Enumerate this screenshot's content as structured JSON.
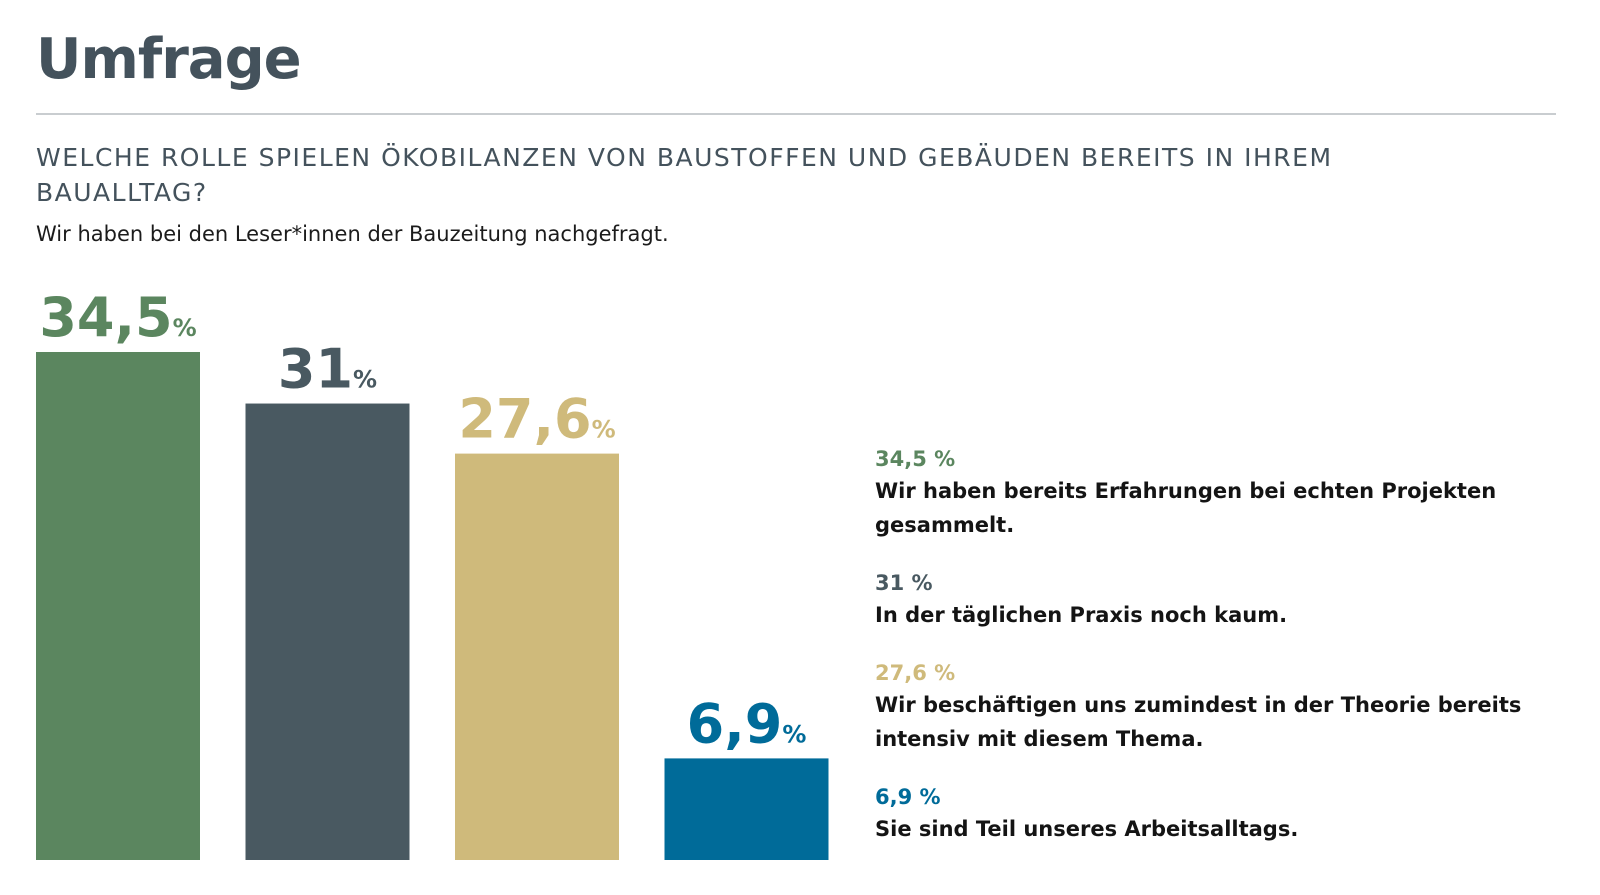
{
  "header": {
    "title": "Umfrage",
    "question": "WELCHE ROLLE SPIELEN ÖKOBILANZEN VON BAUSTOFFEN UND GEBÄUDEN BEREITS IN IHREM BAUALLTAG?",
    "subtitle": "Wir haben bei den Leser*innen der Bauzeitung nachgefragt."
  },
  "chart_data": {
    "type": "bar",
    "title": "WELCHE ROLLE SPIELEN ÖKOBILANZEN VON BAUSTOFFEN UND GEBÄUDEN BEREITS IN IHREM BAUALLTAG?",
    "subtitle": "Wir haben bei den Leser*innen der Bauzeitung nachgefragt.",
    "categories": [
      "Wir haben bereits Erfahrungen bei echten Projekten gesammelt.",
      "In der täglichen Praxis noch kaum.",
      "Wir beschäftigen uns zumindest in der Theorie bereits intensiv mit diesem Thema.",
      "Sie sind Teil unseres Arbeitsalltags."
    ],
    "values": [
      34.5,
      31,
      27.6,
      6.9
    ],
    "value_labels": [
      "34,5",
      "31",
      "27,6",
      "6,9"
    ],
    "unit": "%",
    "legend_values": [
      "34,5 %",
      "31 %",
      "27,6 %",
      "6,9 %"
    ],
    "colors": [
      "#5b865f",
      "#495961",
      "#cfba7b",
      "#006b99"
    ],
    "xlabel": "",
    "ylabel": "",
    "grid": false,
    "legend": "right"
  }
}
